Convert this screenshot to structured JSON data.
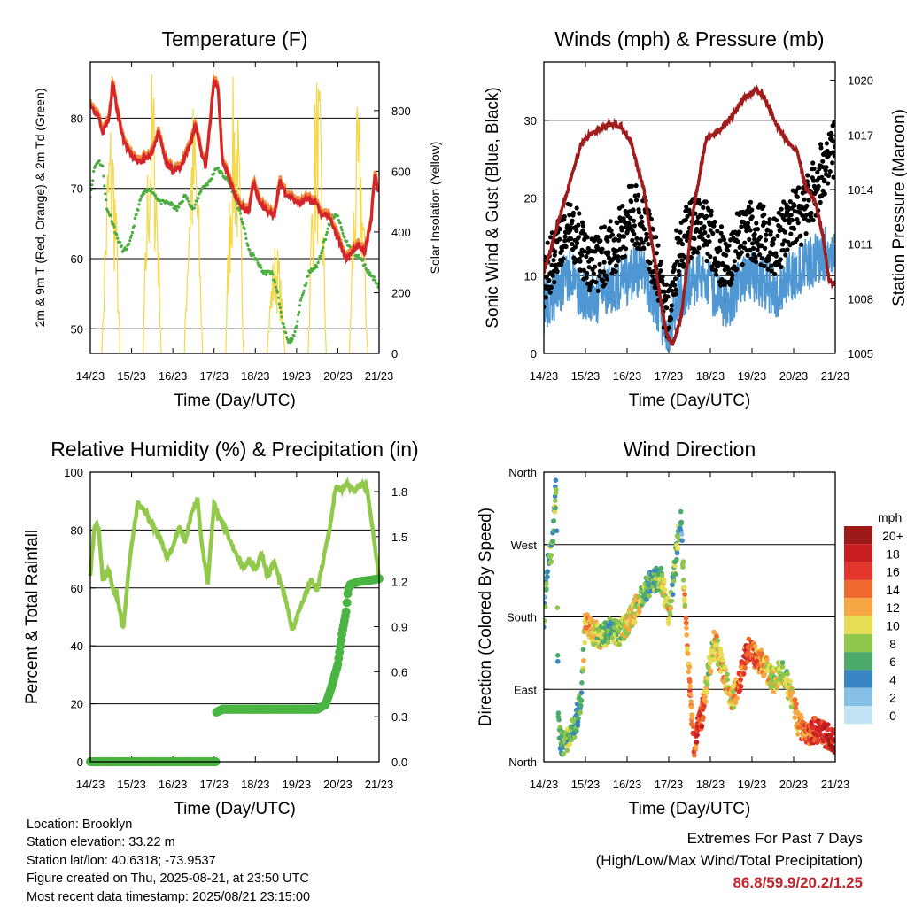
{
  "chart_data": [
    {
      "type": "line",
      "title": "Temperature (F)",
      "xlabel": "Time (Day/UTC)",
      "ylabel": "2m & 9m T (Red, Orange) & 2m Td (Green)",
      "y2label": "Solar Insolation (Yellow)",
      "x_ticks": [
        "14/23",
        "15/23",
        "16/23",
        "17/23",
        "18/23",
        "19/23",
        "20/23",
        "21/23"
      ],
      "xlim": [
        0,
        7
      ],
      "ylim": [
        46.5,
        88
      ],
      "y_ticks": [
        50,
        60,
        70,
        80
      ],
      "y2lim": [
        0,
        960
      ],
      "y2_ticks": [
        0,
        200,
        400,
        600,
        800
      ],
      "series_colors": {
        "temp_2m": "#d6252a",
        "temp_9m": "#f08c3a",
        "dewpoint_2m": "#4aae3f",
        "solar": "#f4d74a"
      },
      "series": [
        {
          "name": "2m T",
          "x": [
            0,
            0.1,
            0.2,
            0.3,
            0.45,
            0.55,
            0.65,
            0.8,
            0.95,
            1.1,
            1.3,
            1.5,
            1.65,
            1.85,
            2.0,
            2.2,
            2.4,
            2.55,
            2.7,
            2.8,
            2.9,
            3.0,
            3.1,
            3.2,
            3.35,
            3.5,
            3.7,
            3.85,
            3.95,
            4.1,
            4.25,
            4.45,
            4.6,
            4.75,
            4.9,
            5.1,
            5.25,
            5.45,
            5.6,
            5.8,
            6.0,
            6.2,
            6.35,
            6.5,
            6.65,
            6.8,
            6.9,
            7.0
          ],
          "values": [
            82,
            81,
            80.5,
            78,
            80,
            85,
            81,
            77,
            75,
            74,
            74,
            75,
            78,
            73.5,
            72.5,
            73,
            76,
            79,
            75,
            73,
            79,
            85.5,
            84,
            74,
            72,
            69,
            67,
            67,
            71,
            68,
            67,
            66,
            71,
            69,
            68.5,
            68,
            68.5,
            68,
            66.5,
            66,
            63,
            60,
            61,
            62,
            61,
            65,
            72,
            69
          ]
        },
        {
          "name": "Td",
          "x": [
            0,
            0.1,
            0.2,
            0.3,
            0.4,
            0.5,
            0.65,
            0.8,
            0.95,
            1.1,
            1.25,
            1.45,
            1.7,
            1.9,
            2.1,
            2.3,
            2.5,
            2.7,
            2.9,
            3.05,
            3.2,
            3.35,
            3.5,
            3.7,
            3.85,
            4.0,
            4.2,
            4.4,
            4.55,
            4.65,
            4.8,
            4.95,
            5.1,
            5.3,
            5.5,
            5.7,
            5.85,
            6.0,
            6.15,
            6.35,
            6.55,
            6.75,
            6.9,
            7.0
          ],
          "values": [
            69,
            73,
            74,
            73,
            67,
            66,
            63,
            61,
            62,
            66,
            69,
            70,
            68,
            68,
            67,
            69,
            67,
            70,
            71,
            73,
            72,
            71,
            69,
            65,
            61,
            60,
            58,
            58,
            55,
            51,
            48,
            49,
            54,
            58,
            59,
            63,
            66,
            66,
            63,
            61,
            60,
            58,
            57,
            56
          ]
        },
        {
          "name": "Solar",
          "solar_peak_x": [
            0.5,
            1.5,
            2.5,
            3.5,
            4.5,
            5.5,
            6.5
          ],
          "solar_peak_values": [
            830,
            960,
            860,
            960,
            380,
            960,
            830
          ]
        }
      ]
    },
    {
      "type": "scatter",
      "title": "Winds (mph) & Pressure (mb)",
      "xlabel": "Time (Day/UTC)",
      "ylabel": "Sonic Wind & Gust (Blue, Black)",
      "y2label": "Station Pressure (Maroon)",
      "x_ticks": [
        "14/23",
        "15/23",
        "16/23",
        "17/23",
        "18/23",
        "19/23",
        "20/23",
        "21/23"
      ],
      "xlim": [
        0,
        7
      ],
      "ylim": [
        0,
        37.5
      ],
      "y_ticks": [
        0,
        10,
        20,
        30
      ],
      "y2lim": [
        1005,
        1021
      ],
      "y2_ticks": [
        1005,
        1008,
        1011,
        1014,
        1017,
        1020
      ],
      "series_colors": {
        "wind": "#4f97d3",
        "gust": "#000000",
        "pressure": "#a01c1c"
      },
      "series": [
        {
          "name": "Wind",
          "x": [
            0,
            0.3,
            0.6,
            0.9,
            1.2,
            1.5,
            1.8,
            2.1,
            2.4,
            2.7,
            3.0,
            3.2,
            3.5,
            3.8,
            4.1,
            4.4,
            4.7,
            5.0,
            5.3,
            5.6,
            5.9,
            6.2,
            6.5,
            6.8,
            7.0
          ],
          "values": [
            6,
            8,
            10,
            8,
            7,
            8,
            9,
            10,
            11,
            6,
            2,
            7,
            9,
            10,
            8,
            6,
            9,
            10,
            9,
            8,
            10,
            11,
            12,
            13,
            14
          ]
        },
        {
          "name": "Gust",
          "x": [
            0,
            0.3,
            0.6,
            0.9,
            1.2,
            1.5,
            1.8,
            2.1,
            2.4,
            2.7,
            3.0,
            3.2,
            3.5,
            3.8,
            4.1,
            4.4,
            4.7,
            5.0,
            5.3,
            5.6,
            5.9,
            6.2,
            6.5,
            6.8,
            7.0
          ],
          "values": [
            10,
            13,
            16,
            14,
            11,
            13,
            15,
            18,
            17,
            11,
            4,
            13,
            16,
            17,
            14,
            11,
            15,
            16,
            15,
            14,
            17,
            18,
            21,
            25,
            27
          ]
        },
        {
          "name": "Pressure",
          "x": [
            0,
            0.2,
            0.45,
            0.7,
            0.9,
            1.1,
            1.3,
            1.6,
            1.85,
            2.1,
            2.4,
            2.6,
            2.8,
            2.95,
            3.1,
            3.3,
            3.6,
            3.9,
            4.2,
            4.5,
            4.8,
            5.1,
            5.3,
            5.6,
            5.9,
            6.1,
            6.3,
            6.5,
            6.7,
            6.85,
            7.0
          ],
          "values": [
            1009.5,
            1011,
            1013,
            1015,
            1016.5,
            1017,
            1017.3,
            1017.6,
            1017.5,
            1016.5,
            1014,
            1011,
            1008,
            1006,
            1005.5,
            1007,
            1013,
            1016.8,
            1017.2,
            1018,
            1019,
            1019.5,
            1019,
            1017.5,
            1016.5,
            1016,
            1014,
            1013.5,
            1011.5,
            1009,
            1008.8
          ]
        }
      ]
    },
    {
      "type": "line",
      "title": "Relative Humidity (%) & Precipitation (in)",
      "xlabel": "Time (Day/UTC)",
      "ylabel": "Percent & Total Rainfall",
      "x_ticks": [
        "14/23",
        "15/23",
        "16/23",
        "17/23",
        "18/23",
        "19/23",
        "20/23",
        "21/23"
      ],
      "xlim": [
        0,
        7
      ],
      "ylim": [
        0,
        100
      ],
      "y_ticks": [
        0,
        20,
        40,
        60,
        80,
        100
      ],
      "y2lim": [
        0,
        1.93
      ],
      "y2_ticks": [
        "0.0",
        "0.3",
        "0.6",
        "0.9",
        "1.2",
        "1.5",
        "1.8"
      ],
      "series_colors": {
        "humidity": "#92c94c",
        "rainfall": "#4ab543"
      },
      "series": [
        {
          "name": "RH",
          "x": [
            0,
            0.1,
            0.2,
            0.3,
            0.45,
            0.55,
            0.65,
            0.8,
            0.9,
            1.0,
            1.15,
            1.3,
            1.5,
            1.7,
            1.85,
            2.0,
            2.15,
            2.3,
            2.45,
            2.6,
            2.7,
            2.85,
            3.0,
            3.1,
            3.25,
            3.4,
            3.55,
            3.7,
            3.85,
            4.0,
            4.15,
            4.3,
            4.45,
            4.6,
            4.75,
            4.9,
            5.05,
            5.2,
            5.35,
            5.5,
            5.65,
            5.8,
            5.95,
            6.1,
            6.25,
            6.4,
            6.55,
            6.7,
            6.85,
            7.0
          ],
          "values": [
            65,
            81,
            81,
            63,
            66,
            59,
            57,
            46,
            62,
            75,
            89,
            87,
            82,
            77,
            71,
            74,
            81,
            76,
            86,
            91,
            75,
            62,
            89,
            85,
            81,
            76,
            71,
            67,
            70,
            66,
            72,
            64,
            69,
            62,
            55,
            45,
            52,
            57,
            63,
            59,
            70,
            80,
            95,
            94,
            96,
            93,
            96,
            95,
            80,
            63
          ]
        },
        {
          "name": "Rainfall",
          "x": [
            0,
            0.8,
            1.6,
            2.4,
            3.05,
            3.06,
            3.2,
            3.5,
            4.0,
            4.5,
            5.0,
            5.5,
            5.7,
            5.85,
            6.0,
            6.1,
            6.2,
            6.25,
            6.3,
            6.5,
            6.8,
            7.0
          ],
          "values": [
            0,
            0,
            0,
            0,
            0,
            0.33,
            0.35,
            0.35,
            0.35,
            0.35,
            0.35,
            0.35,
            0.38,
            0.5,
            0.65,
            0.85,
            1.0,
            1.15,
            1.18,
            1.2,
            1.21,
            1.22
          ]
        }
      ]
    },
    {
      "type": "scatter",
      "title": "Wind Direction",
      "xlabel": "Time (Day/UTC)",
      "ylabel": "Direction (Colored By Speed)",
      "x_ticks": [
        "14/23",
        "15/23",
        "16/23",
        "17/23",
        "18/23",
        "19/23",
        "20/23",
        "21/23"
      ],
      "xlim": [
        0,
        7
      ],
      "ylim": [
        0,
        360
      ],
      "y_ticks": [
        "North",
        "East",
        "South",
        "West",
        "North"
      ],
      "colorbar_title": "mph",
      "colorbar_labels": [
        "20+",
        "18",
        "16",
        "14",
        "12",
        "10",
        "8",
        "6",
        "4",
        "2",
        "0"
      ],
      "colorbar_colors": [
        "#9e1a1a",
        "#c81e22",
        "#e2352b",
        "#ef6a2e",
        "#f6a642",
        "#e6dd54",
        "#8fc64c",
        "#4caa6a",
        "#3a86c4",
        "#86bfe6",
        "#c4e4f6"
      ],
      "series": [
        {
          "name": "Direction",
          "x": [
            0,
            0.1,
            0.2,
            0.3,
            0.35,
            0.45,
            0.6,
            0.75,
            0.9,
            1.0,
            1.2,
            1.4,
            1.6,
            1.8,
            2.0,
            2.2,
            2.4,
            2.6,
            2.8,
            2.9,
            3.0,
            3.1,
            3.2,
            3.3,
            3.4,
            3.6,
            3.8,
            3.95,
            4.1,
            4.3,
            4.5,
            4.7,
            4.9,
            5.1,
            5.3,
            5.5,
            5.7,
            5.9,
            6.1,
            6.3,
            6.5,
            6.7,
            6.9,
            7.0
          ],
          "values": [
            180,
            250,
            260,
            350,
            40,
            20,
            30,
            45,
            80,
            175,
            160,
            155,
            165,
            160,
            170,
            190,
            210,
            225,
            230,
            210,
            180,
            220,
            270,
            300,
            180,
            20,
            60,
            110,
            150,
            115,
            75,
            100,
            140,
            130,
            120,
            100,
            115,
            90,
            50,
            30,
            40,
            35,
            30,
            25
          ],
          "speeds": [
            4,
            6,
            8,
            6,
            6,
            6,
            8,
            6,
            6,
            12,
            10,
            8,
            6,
            8,
            10,
            10,
            8,
            6,
            8,
            10,
            12,
            6,
            8,
            4,
            12,
            14,
            16,
            8,
            10,
            12,
            10,
            14,
            16,
            14,
            12,
            10,
            8,
            10,
            12,
            14,
            16,
            16,
            18,
            18
          ]
        }
      ]
    }
  ],
  "info": {
    "location": "Location: Brooklyn",
    "elevation": "Station elevation: 33.22 m",
    "latlon": "Station lat/lon: 40.6318; -73.9537",
    "created": "Figure created on Thu, 2025-08-21, at 23:50 UTC",
    "recent": "Most recent data timestamp: 2025/08/21 23:15:00"
  },
  "extremes": {
    "line1": "Extremes For Past 7 Days",
    "line2": "(High/Low/Max Wind/Total Precipitation)",
    "values": "86.8/59.9/20.2/1.25"
  }
}
